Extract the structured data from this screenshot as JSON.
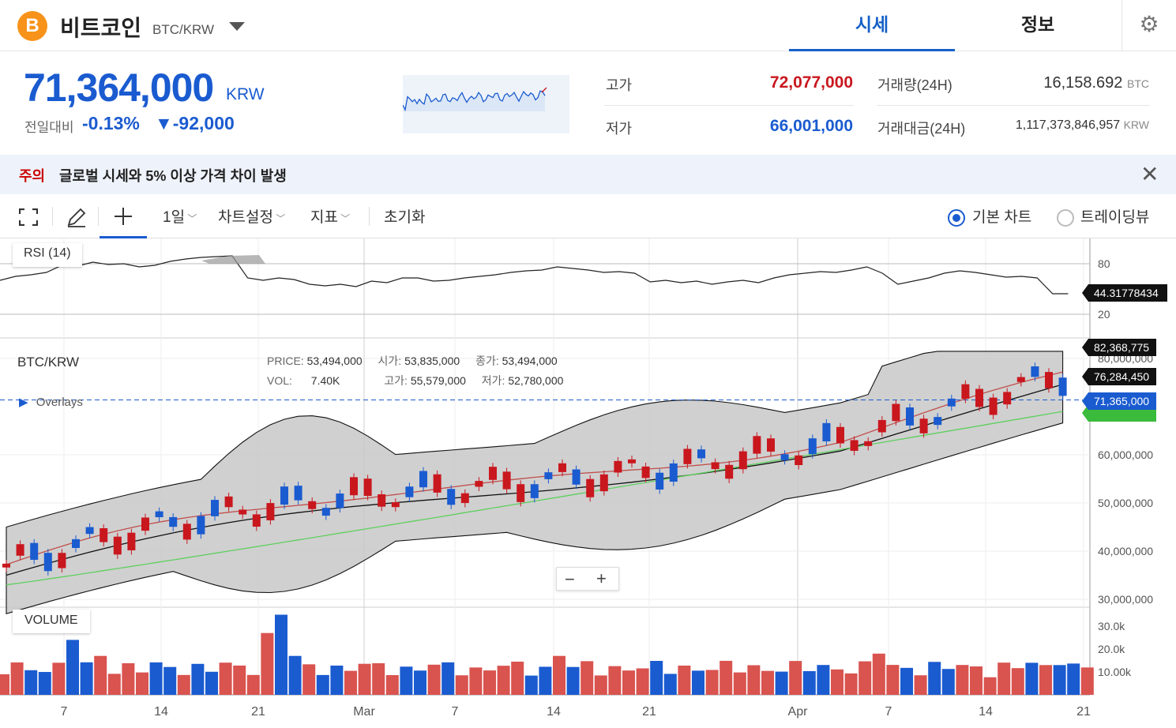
{
  "header": {
    "coin_icon_symbol": "B",
    "coin_name": "비트코인",
    "pair": "BTC/KRW",
    "tabs": [
      {
        "label": "시세",
        "active": true
      },
      {
        "label": "정보",
        "active": false
      }
    ]
  },
  "ticker": {
    "price": "71,364,000",
    "currency": "KRW",
    "change_label": "전일대비",
    "change_pct": "-0.13%",
    "change_amount": "▼-92,000",
    "high_label": "고가",
    "high_value": "72,077,000",
    "low_label": "저가",
    "low_value": "66,001,000",
    "volume_label": "거래량(24H)",
    "volume_value": "16,158.692",
    "volume_unit": "BTC",
    "amount_label": "거래대금(24H)",
    "amount_value": "1,117,373,846,957",
    "amount_unit": "KRW",
    "colors": {
      "up": "#c9171e",
      "down": "#1a5bd0"
    }
  },
  "notice": {
    "tag": "주의",
    "text": "글로벌 시세와 5% 이상 가격 차이 발생"
  },
  "toolbar": {
    "interval": "1일",
    "chart_settings": "차트설정",
    "indicators": "지표",
    "reset": "초기화",
    "mode_basic": "기본 차트",
    "mode_tradingview": "트레이딩뷰"
  },
  "chart": {
    "rsi_label": "RSI (14)",
    "rsi_ticks": [
      "80",
      "20"
    ],
    "rsi_value": "44.31778434",
    "symbol": "BTC/KRW",
    "overlays": "Overlays",
    "ohlc": {
      "price_label": "PRICE:",
      "price": "53,494,000",
      "vol_label": "VOL:",
      "vol": "7.40K",
      "open_label": "시가:",
      "open": "53,835,000",
      "close_label": "종가:",
      "close": "53,494,000",
      "high_label": "고가:",
      "high": "55,579,000",
      "low_label": "저가:",
      "low": "52,780,000"
    },
    "price_ticks": [
      "80,000,000",
      "60,000,000",
      "50,000,000",
      "40,000,000",
      "30,000,000"
    ],
    "tag_upper": "82,368,775",
    "tag_mid": "76,284,450",
    "tag_last": "71,365,000",
    "volume_label": "VOLUME",
    "volume_ticks": [
      "30.0k",
      "20.0k",
      "10.00k"
    ],
    "x_ticks": [
      "7",
      "14",
      "21",
      "Mar",
      "7",
      "14",
      "21",
      "Apr",
      "7",
      "14",
      "21"
    ],
    "zoom_out": "−",
    "zoom_in": "+"
  }
}
